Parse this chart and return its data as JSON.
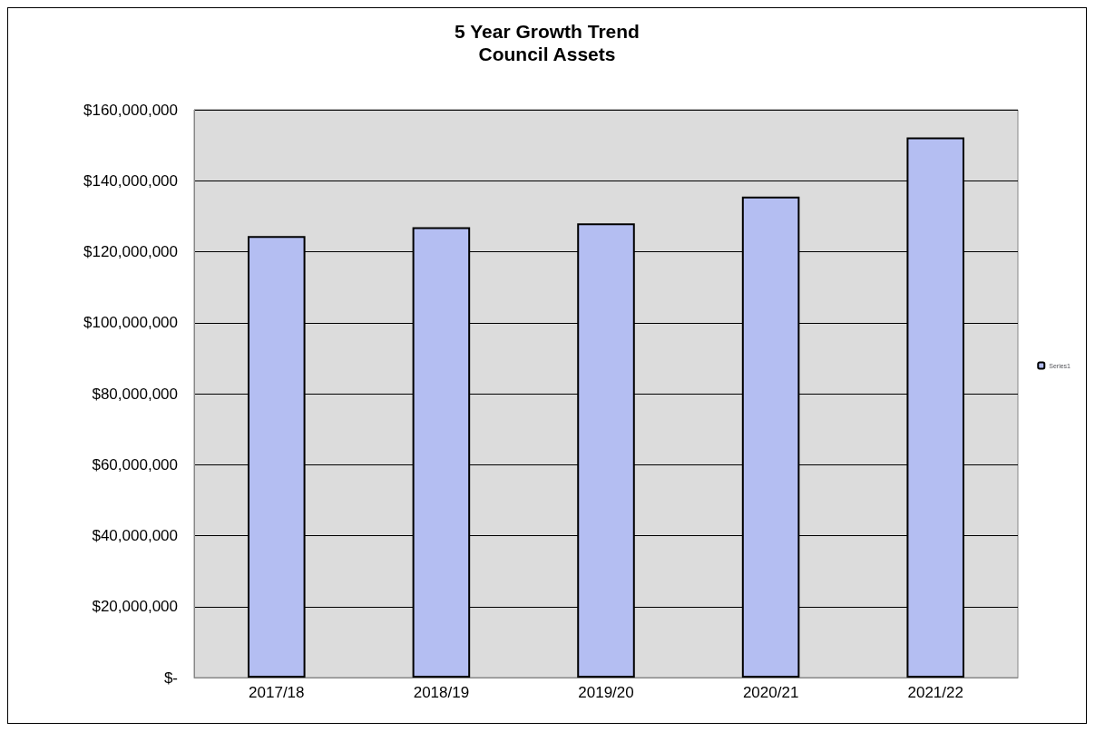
{
  "chart_data": {
    "type": "bar",
    "title": "5 Year Growth Trend\nCouncil Assets",
    "categories": [
      "2017/18",
      "2018/19",
      "2019/20",
      "2020/21",
      "2021/22"
    ],
    "series": [
      {
        "name": "Series1",
        "color": "#b4bef2",
        "values": [
          124400000,
          126900000,
          128000000,
          135500000,
          152200000
        ]
      }
    ],
    "ylim": [
      0,
      160000000
    ],
    "yticks": [
      {
        "value": 0,
        "label": "$-"
      },
      {
        "value": 20000000,
        "label": "$20,000,000"
      },
      {
        "value": 40000000,
        "label": "$40,000,000"
      },
      {
        "value": 60000000,
        "label": "$60,000,000"
      },
      {
        "value": 80000000,
        "label": "$80,000,000"
      },
      {
        "value": 100000000,
        "label": "$100,000,000"
      },
      {
        "value": 120000000,
        "label": "$120,000,000"
      },
      {
        "value": 140000000,
        "label": "$140,000,000"
      },
      {
        "value": 160000000,
        "label": "$160,000,000"
      }
    ],
    "grid": "y",
    "legend": "right"
  }
}
